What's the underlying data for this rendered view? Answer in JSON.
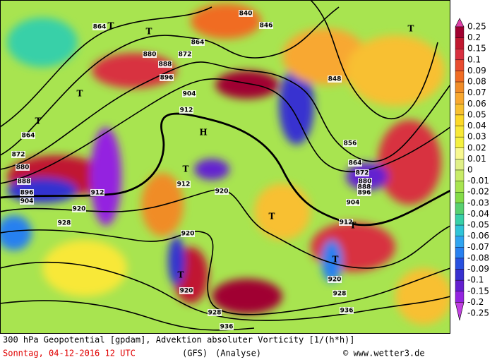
{
  "map": {
    "colorbar": [
      {
        "label": "0.25",
        "color": "#e040a8"
      },
      {
        "label": "0.2",
        "color": "#a00030"
      },
      {
        "label": "0.15",
        "color": "#c01830"
      },
      {
        "label": "0.1",
        "color": "#d83040"
      },
      {
        "label": "0.09",
        "color": "#e84c30"
      },
      {
        "label": "0.08",
        "color": "#f06c24"
      },
      {
        "label": "0.07",
        "color": "#f08c28"
      },
      {
        "label": "0.06",
        "color": "#f8a830"
      },
      {
        "label": "0.05",
        "color": "#f8c030"
      },
      {
        "label": "0.04",
        "color": "#fcd828"
      },
      {
        "label": "0.03",
        "color": "#f8e838"
      },
      {
        "label": "0.02",
        "color": "#f4f040"
      },
      {
        "label": "0.01",
        "color": "#f8f890"
      },
      {
        "label": "0",
        "color": "#e0f088"
      },
      {
        "label": "-0.01",
        "color": "#c8ec68"
      },
      {
        "label": "-0.02",
        "color": "#a8e450"
      },
      {
        "label": "-0.03",
        "color": "#84dc48"
      },
      {
        "label": "-0.04",
        "color": "#58d070"
      },
      {
        "label": "-0.05",
        "color": "#38d0a8"
      },
      {
        "label": "-0.06",
        "color": "#30c4d8"
      },
      {
        "label": "-0.07",
        "color": "#30a4f0"
      },
      {
        "label": "-0.08",
        "color": "#2880f0"
      },
      {
        "label": "-0.09",
        "color": "#2850e0"
      },
      {
        "label": "-0.1",
        "color": "#3830d0"
      },
      {
        "label": "-0.15",
        "color": "#6420d0"
      },
      {
        "label": "-0.2",
        "color": "#9424e0"
      },
      {
        "label": "-0.25",
        "color": "#c040e0"
      }
    ],
    "contour_labels": [
      "840",
      "846",
      "864",
      "864",
      "872",
      "880",
      "888",
      "896",
      "904",
      "912",
      "912",
      "912",
      "848",
      "856",
      "864",
      "872",
      "880",
      "888",
      "896",
      "904",
      "912",
      "864",
      "872",
      "880",
      "888",
      "896",
      "904",
      "920",
      "928",
      "920",
      "920",
      "920",
      "928",
      "936",
      "928",
      "936",
      "920"
    ],
    "markers": [
      "T",
      "T",
      "T",
      "T",
      "T",
      "H",
      "T",
      "T",
      "T",
      "T",
      "T"
    ],
    "footer": {
      "title": "300 hPa Geopotential [gpdam], Advektion absoluter Vorticity [1/(h*h)]",
      "date": "Sonntag, 04-12-2016  12 UTC",
      "model": "(GFS)",
      "run": "(Analyse)",
      "credit": "© www.wetter3.de"
    }
  }
}
